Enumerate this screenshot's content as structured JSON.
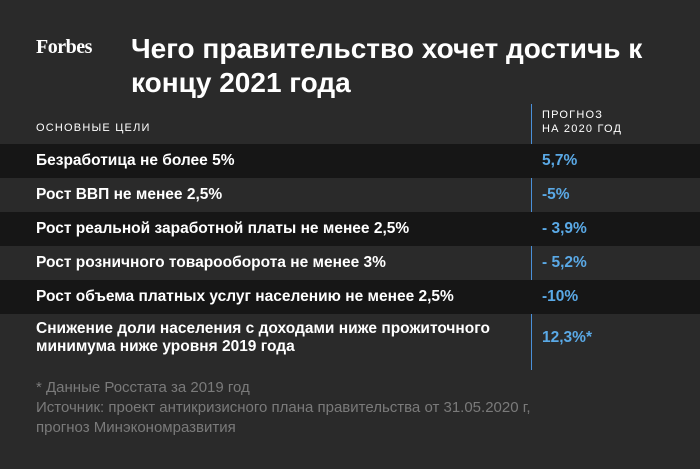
{
  "header": {
    "logo": "Forbes",
    "title": "Чего правительство хочет достичь к концу 2021 года"
  },
  "table": {
    "col_goals": "ОСНОВНЫЕ ЦЕЛИ",
    "col_forecast_line1": "ПРОГНОЗ",
    "col_forecast_line2": "НА 2020 ГОД",
    "rows": [
      {
        "goal": "Безработица не более 5%",
        "forecast": "5,7%"
      },
      {
        "goal": "Рост ВВП не менее 2,5%",
        "forecast": "-5%"
      },
      {
        "goal": "Рост реальной заработной платы не менее 2,5%",
        "forecast": "- 3,9%"
      },
      {
        "goal": "Рост розничного товарооборота не менее 3%",
        "forecast": "- 5,2%"
      },
      {
        "goal": "Рост объема платных услуг населению не менее 2,5%",
        "forecast": "-10%"
      },
      {
        "goal": "Снижение доли населения с доходами ниже прожиточного минимума ниже уровня 2019 года",
        "forecast": "12,3%*"
      }
    ]
  },
  "footnote": {
    "line1": "* Данные Росстата за 2019 год",
    "line2": "Источник: проект антикризисного плана правительства от 31.05.2020 г,",
    "line3": "прогноз Минэкономразвития"
  },
  "colors": {
    "background": "#2a2a2a",
    "row_dark": "#161616",
    "accent_blue": "#5aa9e6",
    "divider": "#4a90d9",
    "muted_text": "#7a7a7a"
  }
}
